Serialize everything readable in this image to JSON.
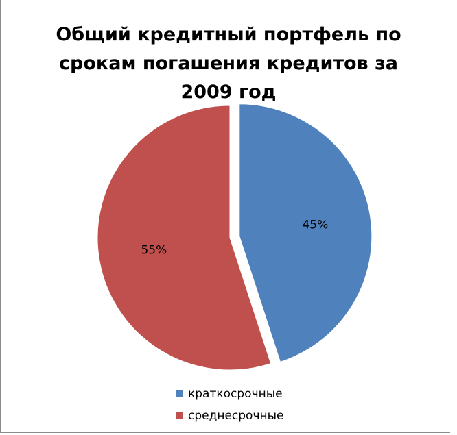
{
  "chart_data": {
    "type": "pie",
    "title_lines": [
      "Общий кредитный портфель по",
      "срокам погашения кредитов за",
      "2009 год"
    ],
    "slices": [
      {
        "label": "краткосрочные",
        "value": 45,
        "value_label": "45%",
        "color": "#4F81BD",
        "exploded": true
      },
      {
        "label": "среднесрочные",
        "value": 55,
        "value_label": "55%",
        "color": "#C0504D",
        "exploded": false
      }
    ],
    "legend_position": "bottom"
  }
}
